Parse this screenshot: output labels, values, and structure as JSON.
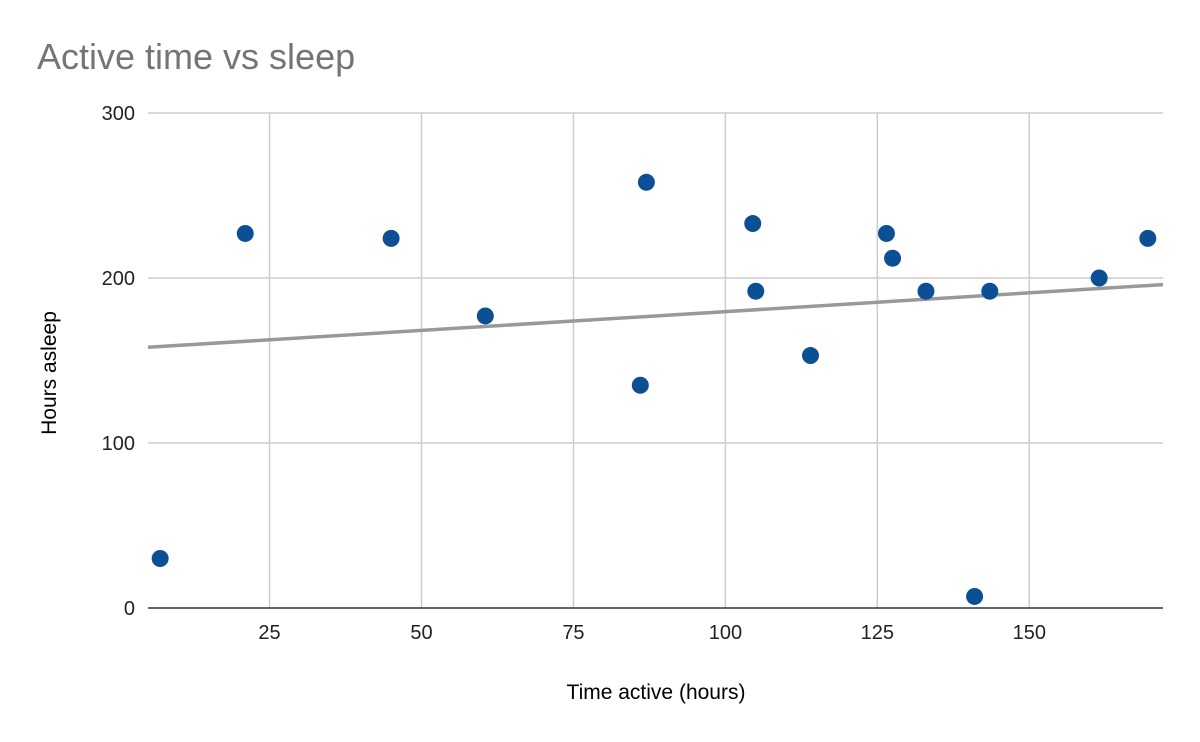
{
  "chart_data": {
    "type": "scatter",
    "title": "Active time vs sleep",
    "xlabel": "Time active (hours)",
    "ylabel": "Hours asleep",
    "xlim": [
      5,
      172
    ],
    "ylim": [
      0,
      300
    ],
    "x_ticks": [
      25,
      50,
      75,
      100,
      125,
      150
    ],
    "y_ticks": [
      0,
      100,
      200,
      300
    ],
    "grid": true,
    "series": [
      {
        "color": "#0d4f94",
        "points": [
          {
            "x": 7,
            "y": 30
          },
          {
            "x": 21,
            "y": 227
          },
          {
            "x": 45,
            "y": 224
          },
          {
            "x": 60.5,
            "y": 177
          },
          {
            "x": 86,
            "y": 135
          },
          {
            "x": 87,
            "y": 258
          },
          {
            "x": 104.5,
            "y": 233
          },
          {
            "x": 105,
            "y": 192
          },
          {
            "x": 114,
            "y": 153
          },
          {
            "x": 126.5,
            "y": 227
          },
          {
            "x": 127.5,
            "y": 212
          },
          {
            "x": 133,
            "y": 192
          },
          {
            "x": 141,
            "y": 7
          },
          {
            "x": 143.5,
            "y": 192
          },
          {
            "x": 161.5,
            "y": 200
          },
          {
            "x": 169.5,
            "y": 224
          }
        ]
      }
    ],
    "trendline": {
      "type": "linear",
      "color": "#999999",
      "points": [
        {
          "x": 5,
          "y": 158
        },
        {
          "x": 172,
          "y": 196
        }
      ]
    }
  }
}
